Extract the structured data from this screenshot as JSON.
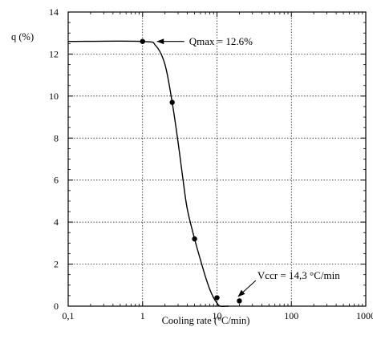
{
  "chart_data": {
    "type": "line",
    "xscale": "log",
    "xlim": [
      0.1,
      1000
    ],
    "ylim": [
      0,
      14
    ],
    "grid": true,
    "xlabel": "Cooling rate (°C/min)",
    "ylabel": "q (%)",
    "x_tick_labels": [
      "0,1",
      "1",
      "10",
      "100",
      "1000"
    ],
    "x_tick_values": [
      0.1,
      1,
      10,
      100,
      1000
    ],
    "y_tick_labels": [
      "0",
      "2",
      "4",
      "6",
      "8",
      "10",
      "12",
      "14"
    ],
    "y_tick_values": [
      0,
      2,
      4,
      6,
      8,
      10,
      12,
      14
    ],
    "series": [
      {
        "points": [
          {
            "x": 1.0,
            "y": 12.6
          },
          {
            "x": 2.5,
            "y": 9.7
          },
          {
            "x": 5.0,
            "y": 3.2
          },
          {
            "x": 10.0,
            "y": 0.4
          },
          {
            "x": 20.0,
            "y": 0.25
          }
        ],
        "curve": [
          {
            "x": 0.1,
            "y": 12.6
          },
          {
            "x": 1.0,
            "y": 12.6
          },
          {
            "x": 1.5,
            "y": 12.4
          },
          {
            "x": 2.0,
            "y": 11.5
          },
          {
            "x": 2.5,
            "y": 9.7
          },
          {
            "x": 3.0,
            "y": 7.8
          },
          {
            "x": 3.5,
            "y": 6.0
          },
          {
            "x": 4.0,
            "y": 4.6
          },
          {
            "x": 5.0,
            "y": 3.2
          },
          {
            "x": 6.0,
            "y": 2.2
          },
          {
            "x": 7.0,
            "y": 1.4
          },
          {
            "x": 8.0,
            "y": 0.8
          },
          {
            "x": 9.0,
            "y": 0.4
          },
          {
            "x": 10.0,
            "y": 0.15
          },
          {
            "x": 11.0,
            "y": 0.0
          },
          {
            "x": 14.3,
            "y": 0.0
          }
        ]
      }
    ],
    "annotations": [
      {
        "text": "Qmax = 12.6%",
        "x": 1.0,
        "y": 12.6
      },
      {
        "text": "Vccr = 14,3 °C/min",
        "x": 14.3,
        "y": 0.0
      }
    ]
  }
}
